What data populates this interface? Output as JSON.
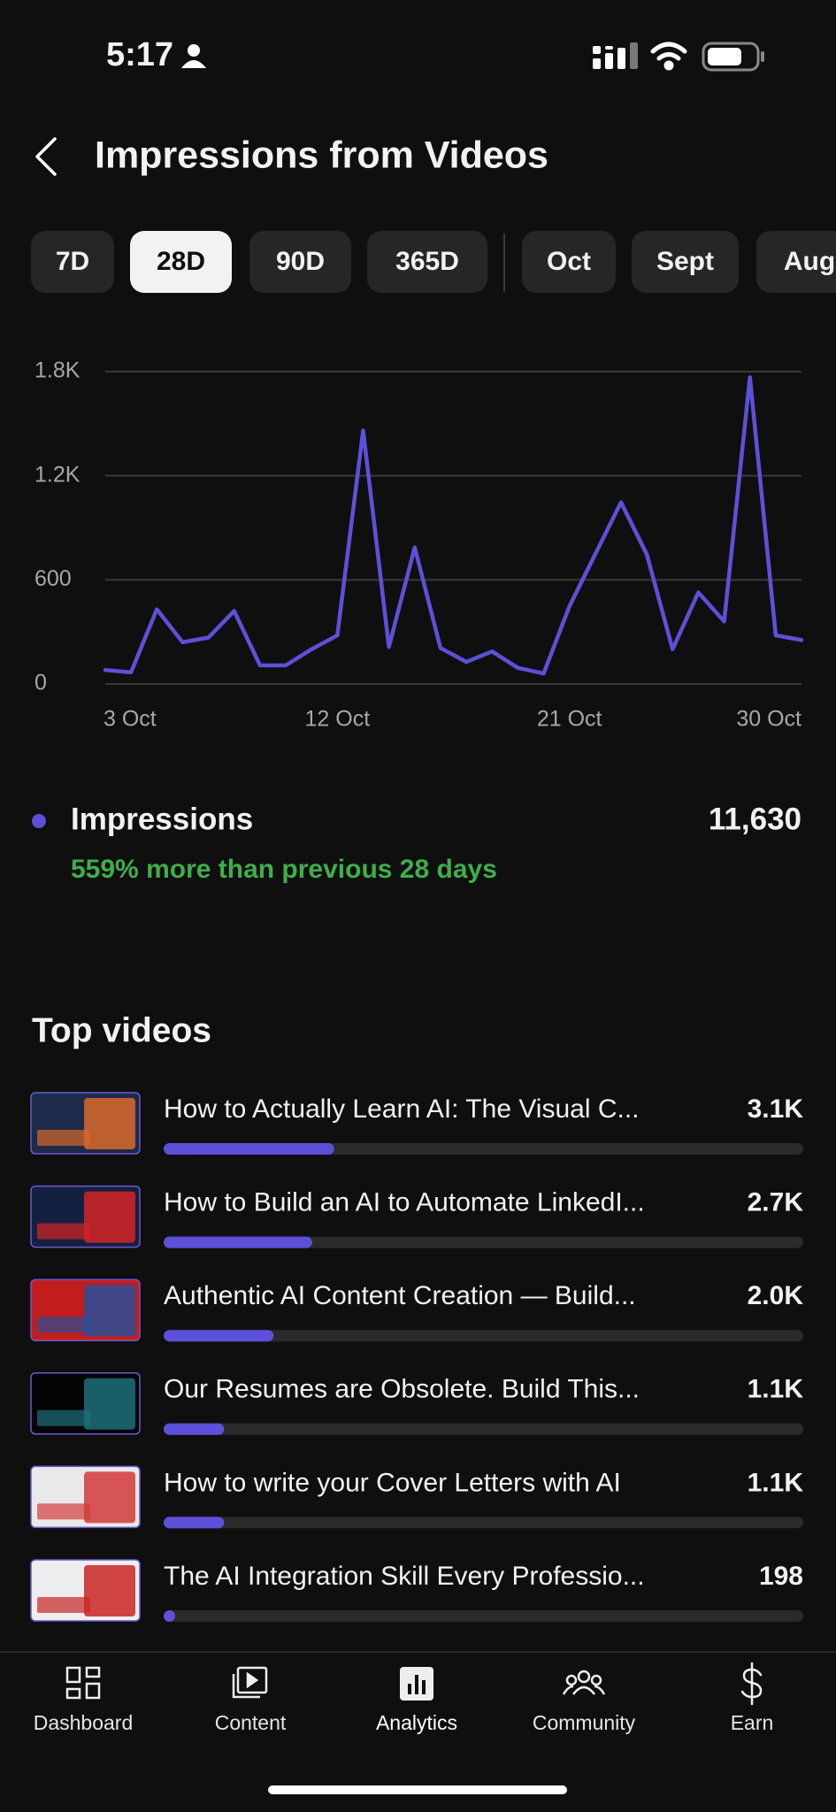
{
  "status_bar": {
    "time": "5:17"
  },
  "header": {
    "title": "Impressions from Videos"
  },
  "tabs": {
    "ranges": [
      "7D",
      "28D",
      "90D",
      "365D"
    ],
    "months": [
      "Oct",
      "Sept",
      "Aug"
    ],
    "selected": "28D"
  },
  "chart_data": {
    "type": "line",
    "categories": [
      "3 Oct",
      null,
      null,
      null,
      null,
      null,
      null,
      null,
      null,
      "12 Oct",
      null,
      null,
      null,
      null,
      null,
      null,
      null,
      null,
      "21 Oct",
      null,
      null,
      null,
      null,
      null,
      null,
      null,
      null,
      "30 Oct"
    ],
    "series": [
      {
        "name": "Impressions",
        "color": "#5d50d8",
        "values": [
          80,
          67,
          430,
          240,
          267,
          420,
          107,
          107,
          200,
          280,
          1460,
          213,
          787,
          207,
          127,
          187,
          93,
          60,
          447,
          747,
          1047,
          747,
          200,
          527,
          360,
          1767,
          280,
          253
        ]
      }
    ],
    "ylim": [
      0,
      1800
    ],
    "yticks": [
      0,
      600,
      {
        "value": 1200,
        "label": "1.2K"
      },
      {
        "value": 1800,
        "label": "1.8K"
      }
    ],
    "grid": true
  },
  "summary": {
    "value": 11630,
    "value_label": "11,630",
    "comparison": "559% more than previous 28 days"
  },
  "top_videos": {
    "title": "Top videos",
    "items": [
      {
        "title": "How to Actually Learn AI: The Visual C...",
        "value": 3100,
        "value_label": "3.1K"
      },
      {
        "title": "How to Build an AI to Automate LinkedI...",
        "value": 2700,
        "value_label": "2.7K"
      },
      {
        "title": "Authentic AI Content Creation — Build...",
        "value": 2000,
        "value_label": "2.0K"
      },
      {
        "title": "Our Resumes are Obsolete. Build This...",
        "value": 1100,
        "value_label": "1.1K"
      },
      {
        "title": "How to write your Cover Letters with AI",
        "value": 1100,
        "value_label": "1.1K"
      },
      {
        "title": "The AI Integration Skill Every Professio...",
        "value": 198,
        "value_label": "198"
      }
    ]
  },
  "nav": {
    "items": [
      "Dashboard",
      "Content",
      "Analytics",
      "Community",
      "Earn"
    ],
    "selected": "Analytics"
  }
}
